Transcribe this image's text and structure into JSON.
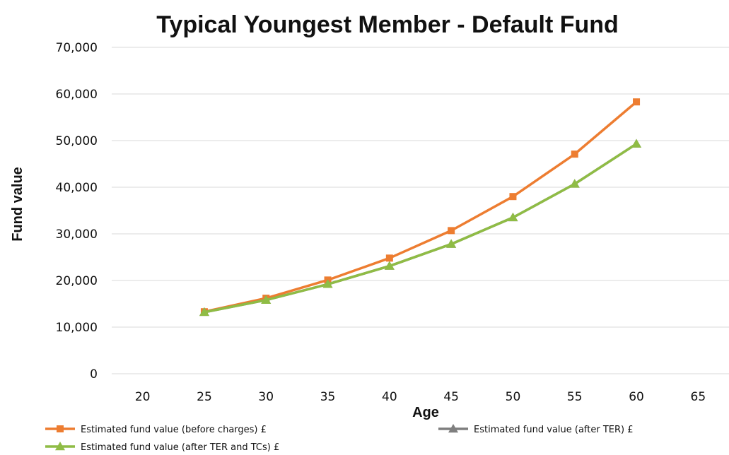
{
  "chart_data": {
    "type": "line",
    "title": "Typical Youngest Member - Default Fund",
    "xlabel": "Age",
    "ylabel": "Fund value",
    "xlim": [
      17.5,
      67.5
    ],
    "ylim": [
      0,
      70000
    ],
    "x_ticks": [
      20,
      25,
      30,
      35,
      40,
      45,
      50,
      55,
      60,
      65
    ],
    "y_ticks": [
      0,
      10000,
      20000,
      30000,
      40000,
      50000,
      60000,
      70000
    ],
    "y_tick_labels": [
      "0",
      "10,000",
      "20,000",
      "30,000",
      "40,000",
      "50,000",
      "60,000",
      "70,000"
    ],
    "grid": "horizontal",
    "legend_position": "bottom",
    "x": [
      25,
      30,
      35,
      40,
      45,
      50,
      55,
      60
    ],
    "series": [
      {
        "name": "Estimated fund value (before charges) £",
        "color": "#ed7d31",
        "marker": "square",
        "values": [
          13300,
          16200,
          20100,
          24800,
          30700,
          38000,
          47100,
          58300
        ]
      },
      {
        "name": "Estimated fund value (after TER) £",
        "color": "#7f7f7f",
        "marker": "triangle",
        "values": [
          13200,
          15800,
          19200,
          23100,
          27800,
          33500,
          40700,
          49300
        ]
      },
      {
        "name": "Estimated fund value (after TER and TCs) £",
        "color": "#8fbc45",
        "marker": "triangle",
        "values": [
          13200,
          15800,
          19200,
          23100,
          27800,
          33500,
          40700,
          49300
        ]
      }
    ]
  }
}
